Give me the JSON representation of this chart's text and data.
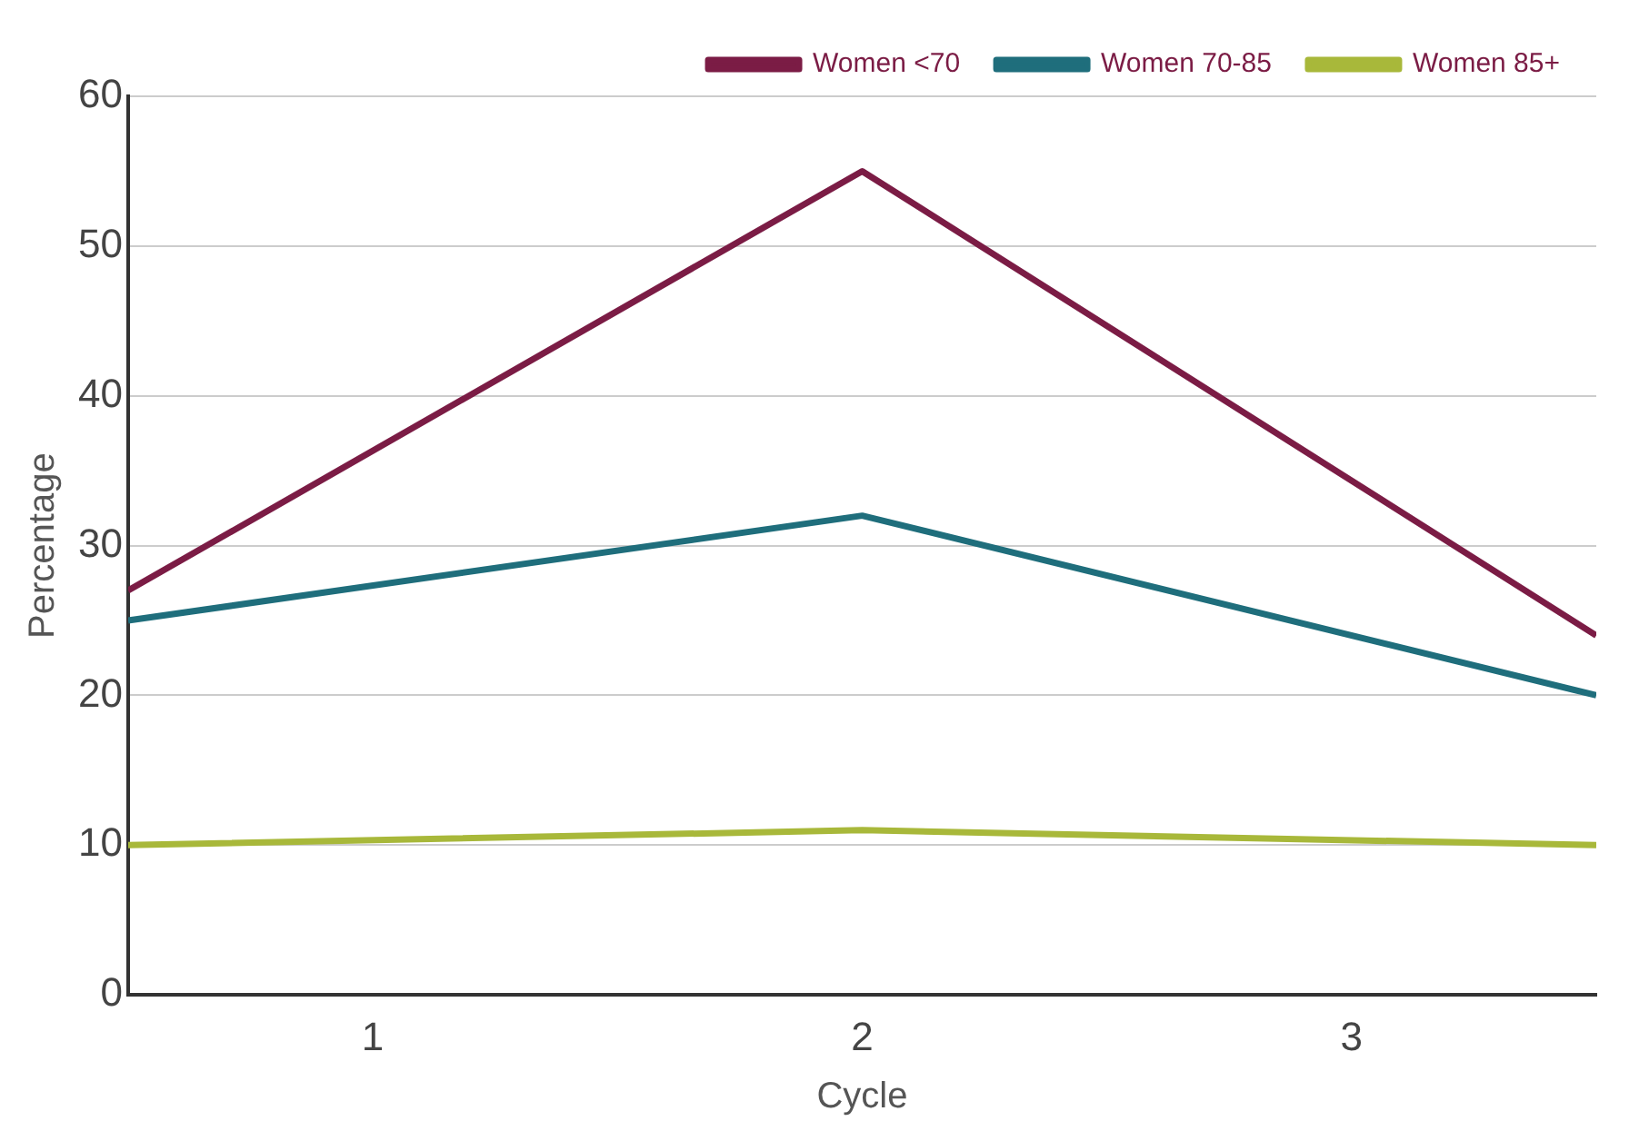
{
  "chart_data": {
    "type": "line",
    "xlabel": "Cycle",
    "ylabel": "Percentage",
    "x": [
      0.5,
      2,
      3.5
    ],
    "series": [
      {
        "name": "Women <70",
        "color": "#7b1c45",
        "values": [
          27,
          55,
          24
        ]
      },
      {
        "name": "Women 70-85",
        "color": "#1f6e7c",
        "values": [
          25,
          32,
          20
        ]
      },
      {
        "name": "Women 85+",
        "color": "#a8b83a",
        "values": [
          10,
          11,
          10
        ]
      }
    ],
    "xlim": [
      0.5,
      3.5
    ],
    "xticks": [
      1,
      2,
      3
    ],
    "ylim": [
      0,
      60
    ],
    "yticks": [
      0,
      10,
      20,
      30,
      40,
      50,
      60
    ],
    "grid": "y",
    "legend": "top right",
    "marker": "none",
    "line_style": "solid"
  }
}
